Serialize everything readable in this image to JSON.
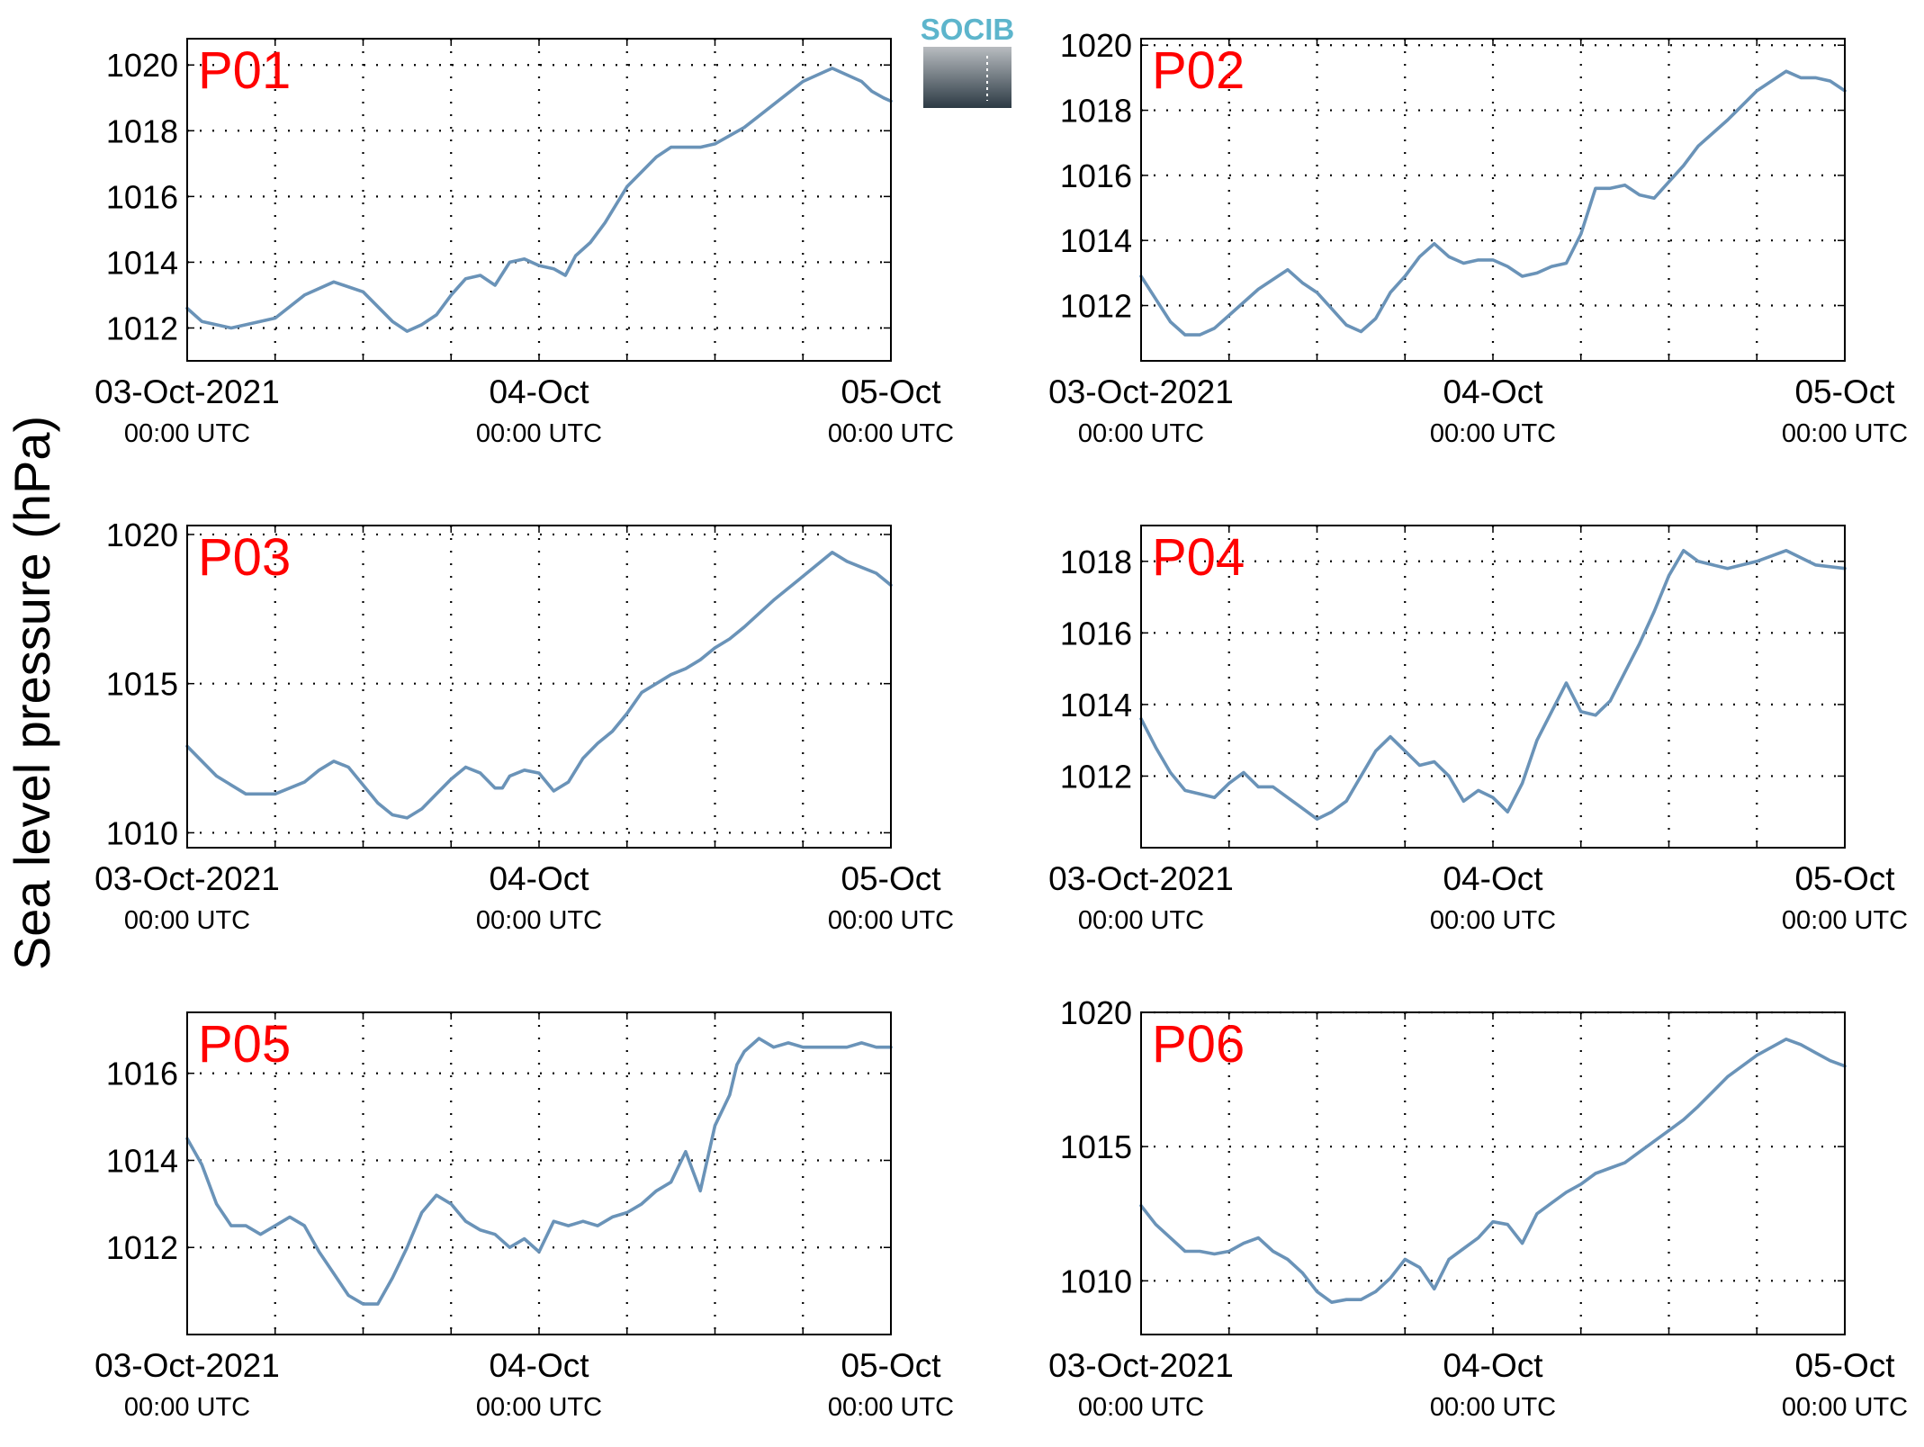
{
  "figure": {
    "ylabel": "Sea level pressure (hPa)",
    "logo_text": "SOCIB",
    "line_color": "#6a93b8",
    "tag_color": "#ff0000"
  },
  "chart_data": [
    {
      "type": "line",
      "name": "P01",
      "x_range": [
        "2021-10-03 00:00 UTC",
        "2021-10-05 00:00 UTC"
      ],
      "x_ticks": [
        {
          "label": "03-Oct-2021",
          "sub": "00:00 UTC",
          "at": 0
        },
        {
          "label": "04-Oct",
          "sub": "00:00 UTC",
          "at": 24
        },
        {
          "label": "05-Oct",
          "sub": "00:00 UTC",
          "at": 48
        }
      ],
      "ylim": [
        1011.0,
        1020.8
      ],
      "y_ticks": [
        1012,
        1014,
        1016,
        1018,
        1020
      ],
      "grid": true,
      "series": [
        {
          "x": [
            0,
            1,
            3,
            6,
            8,
            10,
            12,
            14,
            15,
            16,
            17,
            18,
            19,
            20,
            21,
            22,
            23,
            24,
            25,
            25.8,
            26.5,
            27.5,
            28.5,
            30,
            32,
            33,
            34,
            35,
            36,
            38,
            40,
            42,
            44,
            46,
            46.7,
            47.5,
            48
          ],
          "y": [
            1012.6,
            1012.2,
            1012.0,
            1012.3,
            1013.0,
            1013.4,
            1013.1,
            1012.2,
            1011.9,
            1012.1,
            1012.4,
            1013.0,
            1013.5,
            1013.6,
            1013.3,
            1014.0,
            1014.1,
            1013.9,
            1013.8,
            1013.6,
            1014.2,
            1014.6,
            1015.2,
            1016.3,
            1017.2,
            1017.5,
            1017.5,
            1017.5,
            1017.6,
            1018.1,
            1018.8,
            1019.5,
            1019.9,
            1019.5,
            1019.2,
            1019.0,
            1018.9
          ]
        }
      ]
    },
    {
      "type": "line",
      "name": "P02",
      "x_range": [
        "2021-10-03 00:00 UTC",
        "2021-10-05 00:00 UTC"
      ],
      "x_ticks": [
        {
          "label": "03-Oct-2021",
          "sub": "00:00 UTC",
          "at": 0
        },
        {
          "label": "04-Oct",
          "sub": "00:00 UTC",
          "at": 24
        },
        {
          "label": "05-Oct",
          "sub": "00:00 UTC",
          "at": 48
        }
      ],
      "ylim": [
        1010.3,
        1020.2
      ],
      "y_ticks": [
        1012,
        1014,
        1016,
        1018,
        1020
      ],
      "grid": true,
      "series": [
        {
          "x": [
            0,
            1,
            2,
            3,
            4,
            5,
            6,
            8,
            10,
            11,
            12,
            13,
            14,
            15,
            16,
            17,
            18,
            19,
            20,
            21,
            22,
            23,
            24,
            25,
            26,
            27,
            28,
            29,
            30,
            31,
            32,
            33,
            34,
            35,
            36,
            37,
            38,
            40,
            42,
            44,
            45,
            46,
            47,
            48
          ],
          "y": [
            1012.9,
            1012.2,
            1011.5,
            1011.1,
            1011.1,
            1011.3,
            1011.7,
            1012.5,
            1013.1,
            1012.7,
            1012.4,
            1011.9,
            1011.4,
            1011.2,
            1011.6,
            1012.4,
            1012.9,
            1013.5,
            1013.9,
            1013.5,
            1013.3,
            1013.4,
            1013.4,
            1013.2,
            1012.9,
            1013.0,
            1013.2,
            1013.3,
            1014.2,
            1015.6,
            1015.6,
            1015.7,
            1015.4,
            1015.3,
            1015.8,
            1016.3,
            1016.9,
            1017.7,
            1018.6,
            1019.2,
            1019.0,
            1019.0,
            1018.9,
            1018.6
          ]
        }
      ]
    },
    {
      "type": "line",
      "name": "P03",
      "x_range": [
        "2021-10-03 00:00 UTC",
        "2021-10-05 00:00 UTC"
      ],
      "x_ticks": [
        {
          "label": "03-Oct-2021",
          "sub": "00:00 UTC",
          "at": 0
        },
        {
          "label": "04-Oct",
          "sub": "00:00 UTC",
          "at": 24
        },
        {
          "label": "05-Oct",
          "sub": "00:00 UTC",
          "at": 48
        }
      ],
      "ylim": [
        1009.5,
        1020.3
      ],
      "y_ticks": [
        1010,
        1015,
        1020
      ],
      "grid": true,
      "series": [
        {
          "x": [
            0,
            2,
            4,
            6,
            8,
            9,
            10,
            11,
            12,
            13,
            14,
            15,
            16,
            17,
            18,
            19,
            20,
            21,
            21.5,
            22,
            23,
            24,
            25,
            26,
            27,
            28,
            29,
            30,
            31,
            32,
            33,
            34,
            35,
            36,
            37,
            38,
            40,
            42,
            44,
            45,
            46,
            47,
            48
          ],
          "y": [
            1012.9,
            1011.9,
            1011.3,
            1011.3,
            1011.7,
            1012.1,
            1012.4,
            1012.2,
            1011.6,
            1011.0,
            1010.6,
            1010.5,
            1010.8,
            1011.3,
            1011.8,
            1012.2,
            1012.0,
            1011.5,
            1011.5,
            1011.9,
            1012.1,
            1012.0,
            1011.4,
            1011.7,
            1012.5,
            1013.0,
            1013.4,
            1014.0,
            1014.7,
            1015.0,
            1015.3,
            1015.5,
            1015.8,
            1016.2,
            1016.5,
            1016.9,
            1017.8,
            1018.6,
            1019.4,
            1019.1,
            1018.9,
            1018.7,
            1018.3
          ]
        }
      ]
    },
    {
      "type": "line",
      "name": "P04",
      "x_range": [
        "2021-10-03 00:00 UTC",
        "2021-10-05 00:00 UTC"
      ],
      "x_ticks": [
        {
          "label": "03-Oct-2021",
          "sub": "00:00 UTC",
          "at": 0
        },
        {
          "label": "04-Oct",
          "sub": "00:00 UTC",
          "at": 24
        },
        {
          "label": "05-Oct",
          "sub": "00:00 UTC",
          "at": 48
        }
      ],
      "ylim": [
        1010.0,
        1019.0
      ],
      "y_ticks": [
        1012,
        1014,
        1016,
        1018
      ],
      "grid": true,
      "series": [
        {
          "x": [
            0,
            1,
            2,
            3,
            4,
            5,
            6,
            7,
            8,
            9,
            10,
            11,
            12,
            13,
            14,
            15,
            16,
            17,
            18,
            19,
            20,
            21,
            22,
            23,
            24,
            25,
            26,
            27,
            28,
            29,
            30,
            31,
            32,
            33,
            34,
            35,
            36,
            37,
            38,
            39,
            40,
            42,
            44,
            46,
            48
          ],
          "y": [
            1013.6,
            1012.8,
            1012.1,
            1011.6,
            1011.5,
            1011.4,
            1011.8,
            1012.1,
            1011.7,
            1011.7,
            1011.4,
            1011.1,
            1010.8,
            1011.0,
            1011.3,
            1012.0,
            1012.7,
            1013.1,
            1012.7,
            1012.3,
            1012.4,
            1012.0,
            1011.3,
            1011.6,
            1011.4,
            1011.0,
            1011.8,
            1013.0,
            1013.8,
            1014.6,
            1013.8,
            1013.7,
            1014.1,
            1014.9,
            1015.7,
            1016.6,
            1017.6,
            1018.3,
            1018.0,
            1017.9,
            1017.8,
            1018.0,
            1018.3,
            1017.9,
            1017.8
          ]
        }
      ]
    },
    {
      "type": "line",
      "name": "P05",
      "x_range": [
        "2021-10-03 00:00 UTC",
        "2021-10-05 00:00 UTC"
      ],
      "x_ticks": [
        {
          "label": "03-Oct-2021",
          "sub": "00:00 UTC",
          "at": 0
        },
        {
          "label": "04-Oct",
          "sub": "00:00 UTC",
          "at": 24
        },
        {
          "label": "05-Oct",
          "sub": "00:00 UTC",
          "at": 48
        }
      ],
      "ylim": [
        1010.0,
        1017.4
      ],
      "y_ticks": [
        1012,
        1014,
        1016
      ],
      "grid": true,
      "series": [
        {
          "x": [
            0,
            1,
            2,
            3,
            4,
            5,
            6,
            7,
            8,
            9,
            10,
            11,
            12,
            13,
            14,
            15,
            16,
            17,
            18,
            19,
            20,
            21,
            22,
            23,
            24,
            25,
            26,
            27,
            28,
            29,
            30,
            31,
            32,
            33,
            34,
            35,
            36,
            37,
            37.5,
            38,
            39,
            40,
            41,
            42,
            43,
            44,
            45,
            46,
            47,
            48
          ],
          "y": [
            1014.5,
            1013.9,
            1013.0,
            1012.5,
            1012.5,
            1012.3,
            1012.5,
            1012.7,
            1012.5,
            1011.9,
            1011.4,
            1010.9,
            1010.7,
            1010.7,
            1011.3,
            1012.0,
            1012.8,
            1013.2,
            1013.0,
            1012.6,
            1012.4,
            1012.3,
            1012.0,
            1012.2,
            1011.9,
            1012.6,
            1012.5,
            1012.6,
            1012.5,
            1012.7,
            1012.8,
            1013.0,
            1013.3,
            1013.5,
            1014.2,
            1013.3,
            1014.8,
            1015.5,
            1016.2,
            1016.5,
            1016.8,
            1016.6,
            1016.7,
            1016.6,
            1016.6,
            1016.6,
            1016.6,
            1016.7,
            1016.6,
            1016.6
          ]
        }
      ]
    },
    {
      "type": "line",
      "name": "P06",
      "x_range": [
        "2021-10-03 00:00 UTC",
        "2021-10-05 00:00 UTC"
      ],
      "x_ticks": [
        {
          "label": "03-Oct-2021",
          "sub": "00:00 UTC",
          "at": 0
        },
        {
          "label": "04-Oct",
          "sub": "00:00 UTC",
          "at": 24
        },
        {
          "label": "05-Oct",
          "sub": "00:00 UTC",
          "at": 48
        }
      ],
      "ylim": [
        1008.0,
        1020.0
      ],
      "y_ticks": [
        1010,
        1015,
        1020
      ],
      "grid": true,
      "series": [
        {
          "x": [
            0,
            1,
            2,
            3,
            4,
            5,
            6,
            7,
            8,
            9,
            10,
            11,
            12,
            13,
            14,
            15,
            16,
            17,
            18,
            19,
            20,
            21,
            22,
            23,
            24,
            25,
            26,
            27,
            28,
            29,
            30,
            31,
            32,
            33,
            34,
            35,
            36,
            37,
            38,
            40,
            42,
            44,
            45,
            46,
            47,
            48
          ],
          "y": [
            1012.8,
            1012.1,
            1011.6,
            1011.1,
            1011.1,
            1011.0,
            1011.1,
            1011.4,
            1011.6,
            1011.1,
            1010.8,
            1010.3,
            1009.6,
            1009.2,
            1009.3,
            1009.3,
            1009.6,
            1010.1,
            1010.8,
            1010.5,
            1009.7,
            1010.8,
            1011.2,
            1011.6,
            1012.2,
            1012.1,
            1011.4,
            1012.5,
            1012.9,
            1013.3,
            1013.6,
            1014.0,
            1014.2,
            1014.4,
            1014.8,
            1015.2,
            1015.6,
            1016.0,
            1016.5,
            1017.6,
            1018.4,
            1019.0,
            1018.8,
            1018.5,
            1018.2,
            1018.0
          ]
        }
      ]
    }
  ]
}
